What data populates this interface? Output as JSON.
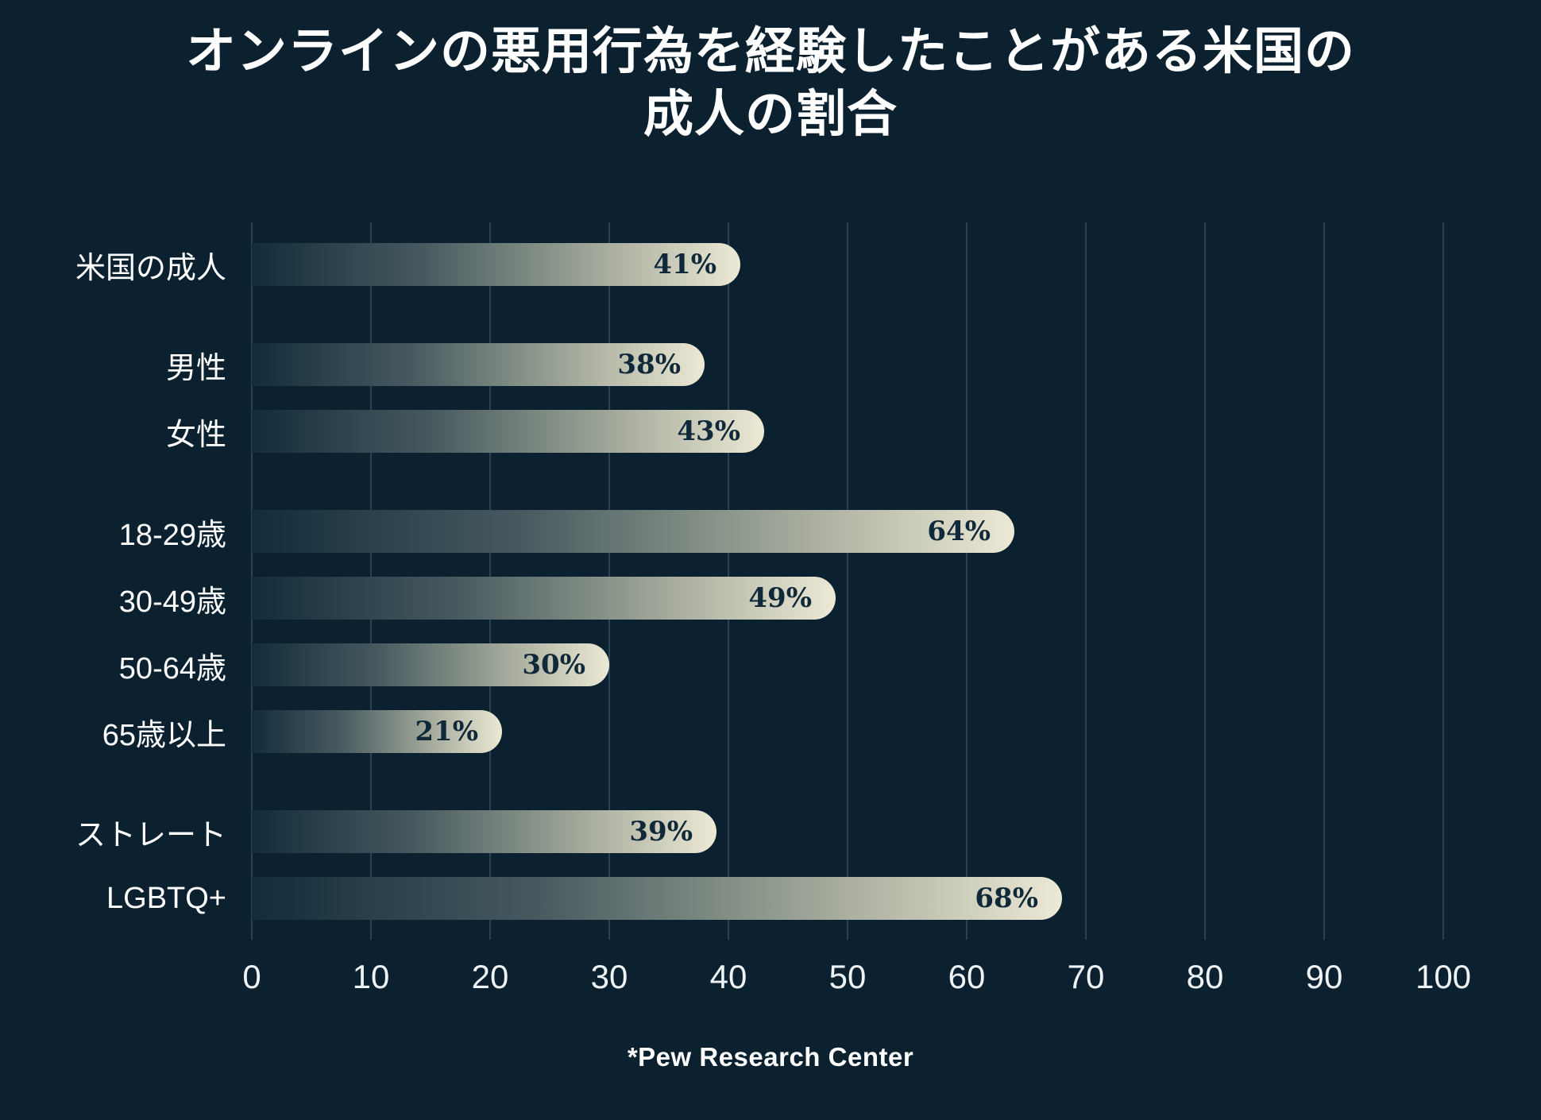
{
  "title": "オンラインの悪用行為を経験したことがある米国の成人の割合",
  "source_note": "*Pew Research Center",
  "colors": {
    "background": "#0b2130",
    "gridline": "#2b4254",
    "bar_gradient_start": "#132c3b",
    "bar_gradient_end": "#ece9d5",
    "value_text": "#10293a",
    "label_text": "#ffffff"
  },
  "chart_data": {
    "type": "bar",
    "orientation": "horizontal",
    "title": "オンラインの悪用行為を経験したことがある米国の成人の割合",
    "categories": [
      "米国の成人",
      "男性",
      "女性",
      "18-29歳",
      "30-49歳",
      "50-64歳",
      "65歳以上",
      "ストレート",
      "LGBTQ+"
    ],
    "values": [
      41,
      38,
      43,
      64,
      49,
      30,
      21,
      39,
      68
    ],
    "value_labels": [
      "41%",
      "38%",
      "43%",
      "64%",
      "49%",
      "30%",
      "21%",
      "39%",
      "68%"
    ],
    "unit": "%",
    "group_sizes": [
      1,
      2,
      4,
      2
    ],
    "groups": [
      [
        "米国の成人"
      ],
      [
        "男性",
        "女性"
      ],
      [
        "18-29歳",
        "30-49歳",
        "50-64歳",
        "65歳以上"
      ],
      [
        "ストレート",
        "LGBTQ+"
      ]
    ],
    "xlabel": "",
    "ylabel": "",
    "xlim": [
      0,
      100
    ],
    "x_ticks": [
      0,
      10,
      20,
      30,
      40,
      50,
      60,
      70,
      80,
      90,
      100
    ],
    "grid": true,
    "legend": false,
    "source": "*Pew Research Center"
  }
}
